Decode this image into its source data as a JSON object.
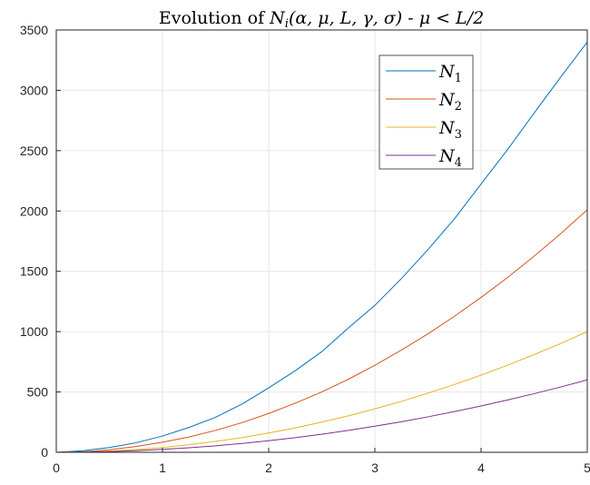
{
  "chart_data": {
    "type": "line",
    "title_prefix": "Evolution of ",
    "title_math": "N",
    "title_sub": "i",
    "title_args": "(α, μ, L, γ, σ)",
    "title_suffix": " - μ < L/2",
    "xlim": [
      0,
      5
    ],
    "ylim": [
      0,
      3500
    ],
    "x_ticks": [
      "0",
      "1",
      "2",
      "3",
      "4",
      "5"
    ],
    "y_ticks": [
      "0",
      "500",
      "1000",
      "1500",
      "2000",
      "2500",
      "3000",
      "3500"
    ],
    "grid": true,
    "legend_position": "top-right",
    "x": [
      0,
      0.25,
      0.5,
      0.75,
      1,
      1.25,
      1.5,
      1.75,
      2,
      2.25,
      2.5,
      2.75,
      3,
      3.25,
      3.5,
      3.75,
      4,
      4.25,
      4.5,
      4.75,
      5
    ],
    "series": [
      {
        "name": "N",
        "sub": "1",
        "color": "#0072BD",
        "values": [
          0,
          13.6,
          39.6,
          78.5,
          135,
          206,
          290,
          400,
          534,
          676,
          834,
          1030,
          1218,
          1440,
          1680,
          1936,
          2224,
          2510,
          2812,
          3110,
          3400
        ]
      },
      {
        "name": "N",
        "sub": "2",
        "color": "#D95319",
        "values": [
          0,
          4.9,
          21,
          48,
          84,
          127,
          182,
          246,
          322,
          407,
          500,
          605,
          721,
          847,
          982,
          1128,
          1284,
          1449,
          1626,
          1812,
          2010
        ]
      },
      {
        "name": "N",
        "sub": "3",
        "color": "#EDB120",
        "values": [
          0,
          2.5,
          10.2,
          23,
          40,
          63,
          90,
          122,
          160,
          202,
          250,
          302,
          360,
          422,
          490,
          562,
          640,
          722,
          810,
          902,
          1000
        ]
      },
      {
        "name": "N",
        "sub": "4",
        "color": "#7E2F8E",
        "values": [
          0,
          1.5,
          6,
          13.5,
          24,
          37.5,
          54,
          73.5,
          96,
          121.5,
          150,
          181.5,
          216,
          253.5,
          294,
          337.5,
          384,
          433.5,
          486,
          541.5,
          600
        ]
      }
    ]
  }
}
